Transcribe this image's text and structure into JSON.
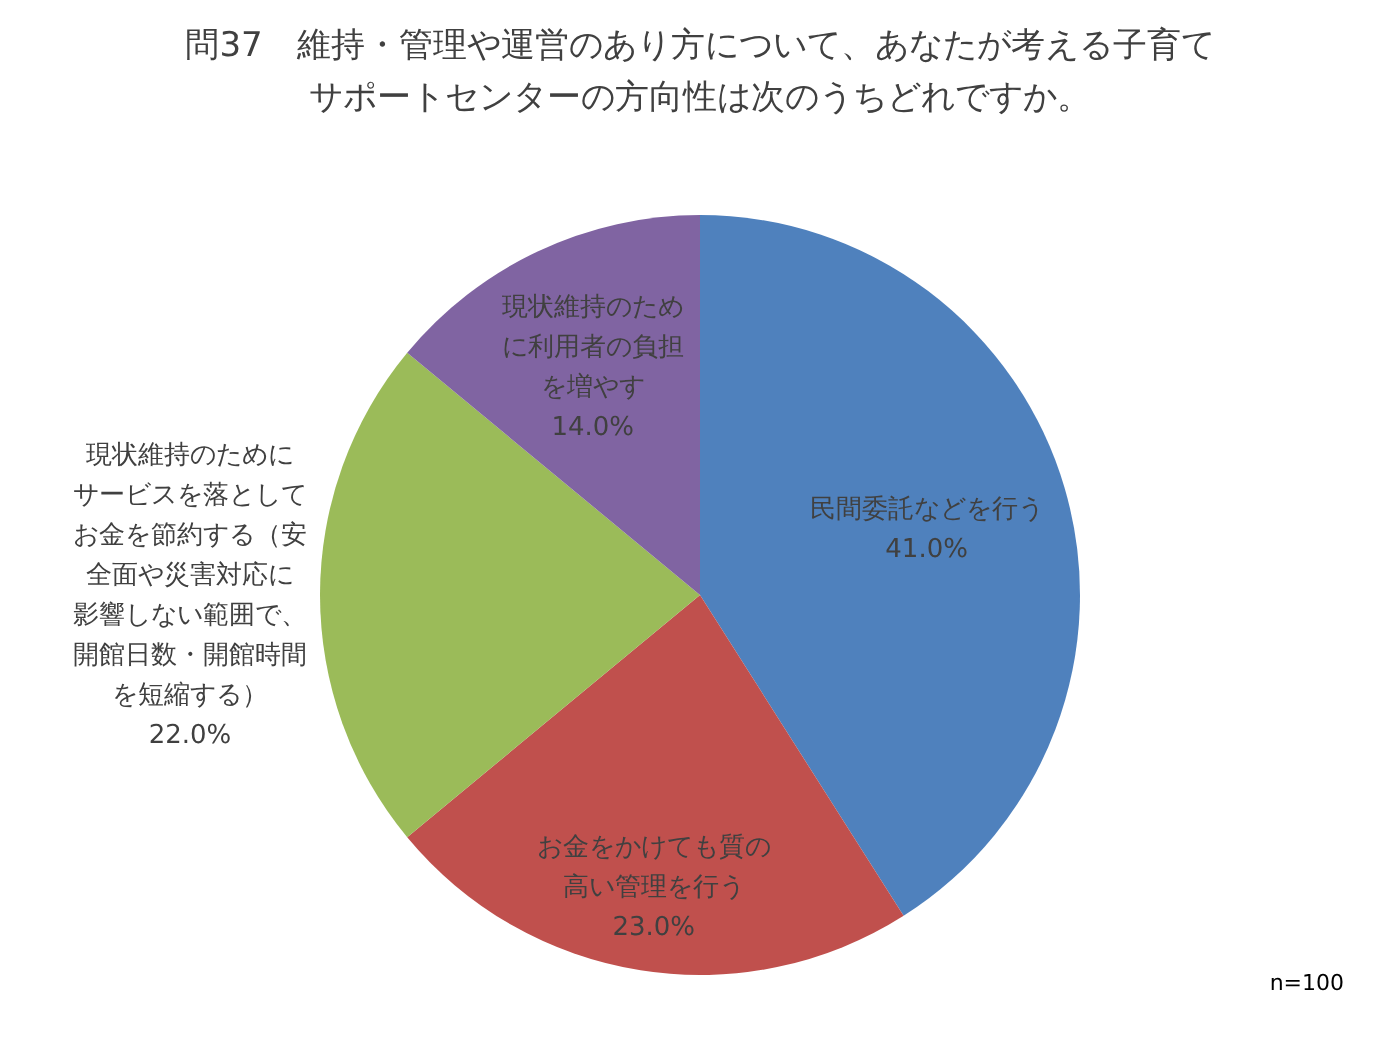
{
  "chart_data": {
    "type": "pie",
    "title": "問37　維持・管理や運営のあり方について、あなたが考える子育てサポートセンターの方向性は次のうちどれですか。",
    "categories": [
      "民間委託などを行う",
      "お金をかけても質の高い管理を行う",
      "現状維持のためにサービスを落としてお金を節約する（安全面や災害対応に影響しない範囲で、開館日数・開館時間を短縮する）",
      "現状維持のために利用者の負担を増やす"
    ],
    "values": [
      41,
      23,
      22,
      14
    ],
    "colors": [
      "#4f81bd",
      "#c0504d",
      "#9bbb59",
      "#8064a2"
    ],
    "value_labels": [
      "41.0%",
      "23.0%",
      "22.0%",
      "14.0%"
    ],
    "annotations": [
      "n=100"
    ],
    "legend": false
  }
}
